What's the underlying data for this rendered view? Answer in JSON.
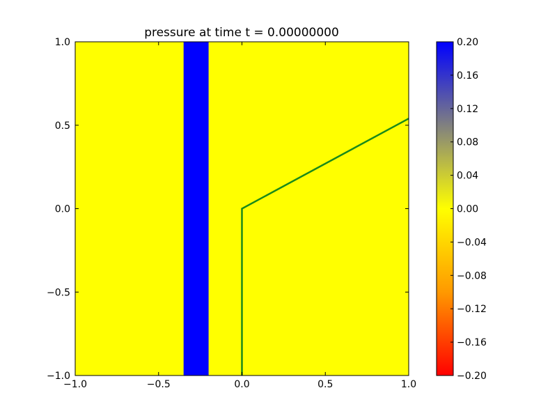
{
  "chart_data": {
    "type": "heatmap",
    "title": "pressure at time t =     0.00000000",
    "xlabel": "",
    "ylabel": "",
    "xlim": [
      -1.0,
      1.0
    ],
    "ylim": [
      -1.0,
      1.0
    ],
    "x_ticks": [
      -1.0,
      -0.5,
      0.0,
      0.5,
      1.0
    ],
    "x_tick_labels": [
      "−1.0",
      "−0.5",
      "0.0",
      "0.5",
      "1.0"
    ],
    "y_ticks": [
      -1.0,
      -0.5,
      0.0,
      0.5,
      1.0
    ],
    "y_tick_labels": [
      "−1.0",
      "−0.5",
      "0.0",
      "0.5",
      "1.0"
    ],
    "grid": false,
    "field": {
      "background_value": 0.0,
      "regions": [
        {
          "x_range": [
            -0.35,
            -0.2
          ],
          "y_range": [
            -1.0,
            1.0
          ],
          "value": 0.2
        }
      ]
    },
    "lines": [
      {
        "color": "#1a8a1a",
        "points": [
          [
            0.0,
            -1.0
          ],
          [
            0.0,
            0.0
          ],
          [
            1.0,
            0.54
          ]
        ]
      }
    ],
    "colorbar": {
      "vmin": -0.2,
      "vmax": 0.2,
      "ticks": [
        0.2,
        0.16,
        0.12,
        0.08,
        0.04,
        0.0,
        -0.04,
        -0.08,
        -0.12,
        -0.16,
        -0.2
      ],
      "tick_labels": [
        "0.20",
        "0.16",
        "0.12",
        "0.08",
        "0.04",
        "0.00",
        "−0.04",
        "−0.08",
        "−0.12",
        "−0.16",
        "−0.20"
      ],
      "colormap": [
        {
          "value": -0.2,
          "color": "#ff0000"
        },
        {
          "value": -0.1,
          "color": "#ff9900"
        },
        {
          "value": 0.0,
          "color": "#ffff00"
        },
        {
          "value": 0.1,
          "color": "#808080"
        },
        {
          "value": 0.2,
          "color": "#0000ff"
        }
      ]
    }
  }
}
